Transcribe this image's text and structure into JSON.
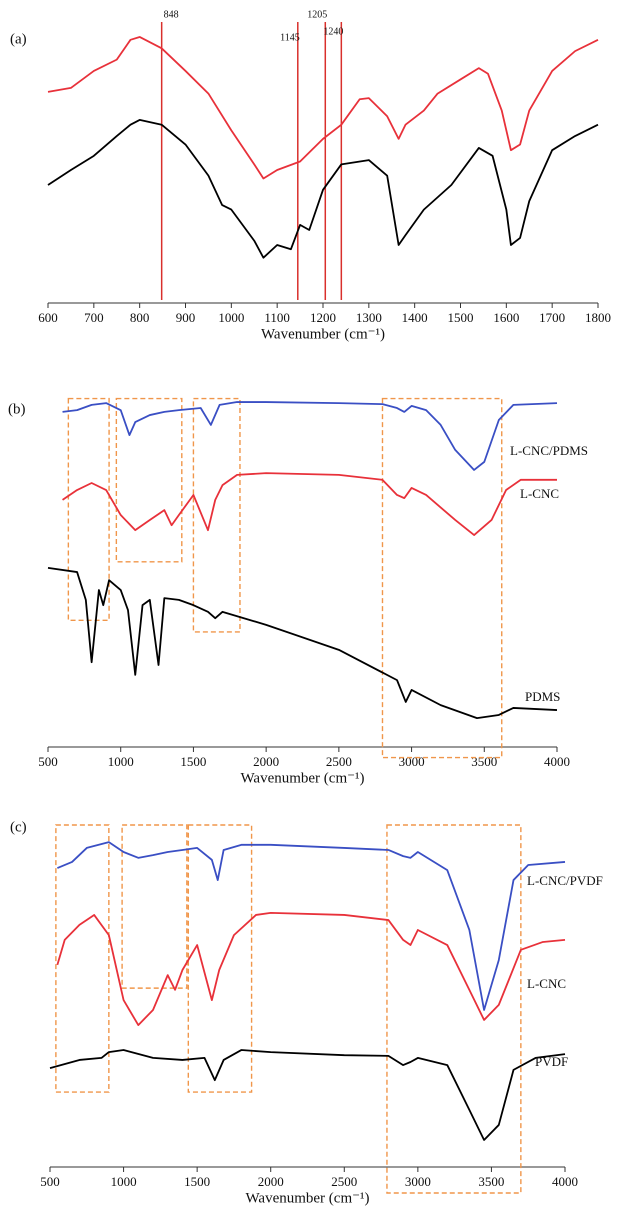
{
  "chart_data": [
    {
      "type": "line",
      "panel_label": "(a)",
      "x_label": "Wavenumber (cm⁻¹)",
      "xlim": [
        600,
        1800
      ],
      "xticks": [
        600,
        700,
        800,
        900,
        1000,
        1100,
        1200,
        1300,
        1400,
        1500,
        1600,
        1700,
        1800
      ],
      "ylim": [
        0,
        100
      ],
      "vlines": [
        848,
        1145,
        1205,
        1240
      ],
      "vline_color": "#d9302c",
      "series": [
        {
          "color": "#e8313a",
          "x": [
            600,
            650,
            700,
            750,
            780,
            800,
            848,
            900,
            950,
            1000,
            1050,
            1070,
            1100,
            1150,
            1200,
            1240,
            1280,
            1300,
            1340,
            1365,
            1380,
            1420,
            1450,
            1500,
            1540,
            1560,
            1590,
            1610,
            1630,
            1650,
            1700,
            1750,
            1800
          ],
          "values": [
            74.6,
            76,
            82,
            86,
            93,
            94,
            90,
            82,
            74,
            61,
            49,
            44,
            47,
            50,
            58,
            63,
            72,
            72.4,
            66,
            58,
            63,
            68,
            74,
            79,
            83,
            81,
            68,
            54,
            56,
            68,
            82,
            89,
            93
          ]
        },
        {
          "color": "#000000",
          "x": [
            600,
            650,
            700,
            750,
            780,
            800,
            848,
            900,
            950,
            980,
            1000,
            1050,
            1070,
            1100,
            1130,
            1150,
            1170,
            1200,
            1240,
            1300,
            1340,
            1365,
            1380,
            1420,
            1480,
            1540,
            1570,
            1600,
            1610,
            1630,
            1650,
            1700,
            1750,
            1800
          ],
          "values": [
            41.7,
            47,
            52,
            59,
            63,
            64.7,
            63,
            56,
            45,
            34.6,
            33,
            22,
            16,
            20.5,
            19,
            27.6,
            25.8,
            40,
            49,
            50.5,
            45,
            20.5,
            24,
            33,
            41.7,
            54.8,
            52,
            33,
            20.5,
            23,
            36,
            54,
            59,
            63
          ]
        }
      ]
    },
    {
      "type": "line",
      "panel_label": "(b)",
      "x_label": "Wavenumber (cm⁻¹)",
      "xlim": [
        500,
        4000
      ],
      "xticks": [
        500,
        1000,
        1500,
        2000,
        2500,
        3000,
        3500,
        4000
      ],
      "ylim": [
        0,
        100
      ],
      "box_color": "#f0964a",
      "boxes": [
        {
          "x": [
            640,
            920
          ],
          "y": [
            36,
            99
          ]
        },
        {
          "x": [
            970,
            1420
          ],
          "y": [
            52.6,
            99
          ]
        },
        {
          "x": [
            1500,
            1820
          ],
          "y": [
            32.7,
            99
          ]
        },
        {
          "x": [
            2800,
            3620
          ],
          "y": [
            -3,
            99
          ]
        }
      ],
      "series": [
        {
          "name": "L-CNC/PDMS",
          "color": "#3a4fc4",
          "x": [
            600,
            700,
            800,
            900,
            1000,
            1060,
            1100,
            1200,
            1300,
            1400,
            1550,
            1620,
            1680,
            1800,
            2000,
            2500,
            2800,
            2900,
            2950,
            3000,
            3100,
            3200,
            3300,
            3430,
            3500,
            3600,
            3700,
            4000
          ],
          "values": [
            95.2,
            95.7,
            97.2,
            97.7,
            95.7,
            88.6,
            92.3,
            94.3,
            95.2,
            95.7,
            96.3,
            91.5,
            97.2,
            98,
            98,
            97.7,
            97.4,
            96.3,
            95.2,
            96.9,
            95.7,
            91.5,
            84.4,
            78.7,
            81,
            92.9,
            97.2,
            97.7
          ]
        },
        {
          "name": "L-CNC",
          "color": "#e8313a",
          "x": [
            600,
            700,
            800,
            900,
            1000,
            1100,
            1200,
            1300,
            1350,
            1400,
            1500,
            1600,
            1650,
            1700,
            1800,
            2000,
            2500,
            2800,
            2900,
            2950,
            3000,
            3100,
            3300,
            3430,
            3550,
            3650,
            3750,
            4000
          ],
          "values": [
            70.2,
            73,
            75,
            73,
            65.9,
            61.6,
            64.5,
            67.3,
            63,
            65.9,
            71.6,
            61.6,
            70.2,
            74.4,
            77.3,
            77.8,
            77.3,
            75.9,
            71.6,
            70.7,
            73.6,
            71.6,
            64.5,
            60.2,
            64.5,
            73,
            75.9,
            75.9
          ]
        },
        {
          "name": "PDMS",
          "color": "#000000",
          "x": [
            500,
            700,
            760,
            800,
            850,
            880,
            920,
            1000,
            1050,
            1100,
            1150,
            1200,
            1260,
            1300,
            1400,
            1500,
            1600,
            1650,
            1700,
            2000,
            2500,
            2900,
            2960,
            3000,
            3200,
            3450,
            3600,
            3700,
            4000
          ],
          "values": [
            50.9,
            49.7,
            41.8,
            24.1,
            44.6,
            40.3,
            47.4,
            44.6,
            38.9,
            20.5,
            40.3,
            41.8,
            23.3,
            42.3,
            41.8,
            40.3,
            38.4,
            36.6,
            38.4,
            34.7,
            27.6,
            19,
            12.8,
            16.2,
            11.9,
            8.2,
            9.1,
            11.1,
            10.5
          ]
        }
      ]
    },
    {
      "type": "line",
      "panel_label": "(c)",
      "x_label": "Wavenumber (cm⁻¹)",
      "xlim": [
        500,
        4000
      ],
      "xticks": [
        500,
        1000,
        1500,
        2000,
        2500,
        3000,
        3500,
        4000
      ],
      "ylim": [
        0,
        100
      ],
      "box_color": "#f0964a",
      "boxes": [
        {
          "x": [
            540,
            900
          ],
          "y": [
            21.9,
            100
          ]
        },
        {
          "x": [
            990,
            1430
          ],
          "y": [
            52.3,
            100
          ]
        },
        {
          "x": [
            1440,
            1870
          ],
          "y": [
            21.9,
            100
          ]
        },
        {
          "x": [
            2790,
            3700
          ],
          "y": [
            -7.6,
            100
          ]
        }
      ],
      "series": [
        {
          "name": "L-CNC/PVDF",
          "color": "#3a4fc4",
          "x": [
            550,
            650,
            750,
            900,
            1000,
            1100,
            1200,
            1300,
            1400,
            1500,
            1600,
            1640,
            1680,
            1800,
            2000,
            2500,
            2800,
            2900,
            2950,
            3000,
            3200,
            3350,
            3450,
            3550,
            3650,
            3750,
            4000
          ],
          "values": [
            87.4,
            89.2,
            93.3,
            95,
            92.1,
            90.4,
            91.2,
            92.1,
            92.7,
            93.3,
            89.8,
            83.9,
            92.7,
            94.2,
            94.2,
            93.3,
            92.7,
            90.9,
            90.4,
            92.1,
            86.8,
            69.3,
            45.9,
            60.5,
            83.9,
            88.3,
            89.2
          ]
        },
        {
          "name": "L-CNC",
          "color": "#e8313a",
          "x": [
            550,
            600,
            700,
            800,
            900,
            1000,
            1100,
            1200,
            1300,
            1350,
            1400,
            1500,
            1600,
            1650,
            1750,
            1900,
            2000,
            2500,
            2800,
            2900,
            2950,
            3000,
            3200,
            3350,
            3450,
            3550,
            3700,
            3850,
            4000
          ],
          "values": [
            59.1,
            66.4,
            70.8,
            73.7,
            67.8,
            48.8,
            41.5,
            45.9,
            56.1,
            51.8,
            57.6,
            64.9,
            48.8,
            57.6,
            67.8,
            73.7,
            74.3,
            73.7,
            72.2,
            66.4,
            64.9,
            69.3,
            64.9,
            51.8,
            43,
            47.4,
            63.5,
            65.8,
            66.4
          ]
        },
        {
          "name": "PVDF",
          "color": "#000000",
          "x": [
            500,
            700,
            850,
            900,
            1000,
            1200,
            1400,
            1550,
            1620,
            1680,
            1800,
            2000,
            2500,
            2800,
            2900,
            2950,
            3000,
            3200,
            3350,
            3450,
            3550,
            3650,
            3800,
            4000
          ],
          "values": [
            28.9,
            31.3,
            31.9,
            33.6,
            34.2,
            31.9,
            31.3,
            31.9,
            25.4,
            31.3,
            34.2,
            33.6,
            32.7,
            32.5,
            29.8,
            30.7,
            31.9,
            29.8,
            16.7,
            7.9,
            12.3,
            28.4,
            31.9,
            33
          ]
        }
      ]
    }
  ]
}
